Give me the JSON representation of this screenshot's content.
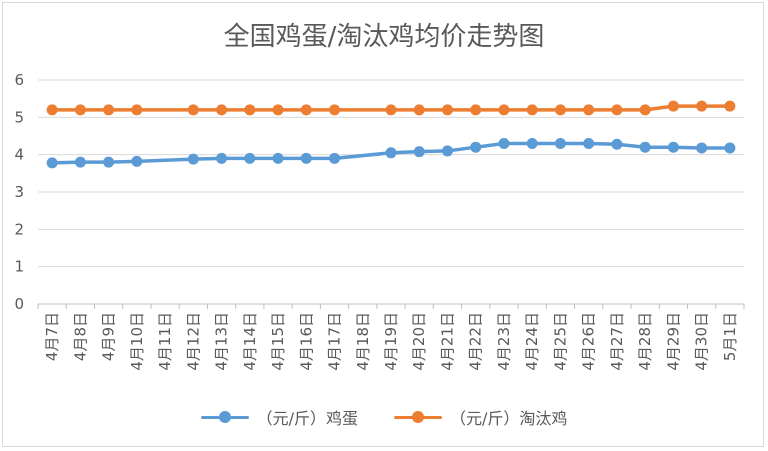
{
  "chart_data": {
    "type": "line",
    "title": "全国鸡蛋/淘汰鸡均价走势图",
    "xlabel": "",
    "ylabel": "",
    "ylim": [
      0,
      6
    ],
    "yticks": [
      "0",
      "1",
      "2",
      "3",
      "4",
      "5",
      "6"
    ],
    "categories": [
      "4月7日",
      "4月8日",
      "4月9日",
      "4月10日",
      "4月11日",
      "4月12日",
      "4月13日",
      "4月14日",
      "4月15日",
      "4月16日",
      "4月17日",
      "4月18日",
      "4月19日",
      "4月20日",
      "4月21日",
      "4月22日",
      "4月23日",
      "4月24日",
      "4月25日",
      "4月26日",
      "4月27日",
      "4月28日",
      "4月29日",
      "4月30日",
      "5月1日"
    ],
    "grid": true,
    "legend_position": "bottom",
    "series": [
      {
        "name": "（元/斤）鸡蛋",
        "color": "#5b9bd5",
        "values": [
          3.78,
          3.8,
          3.8,
          3.82,
          null,
          3.88,
          3.9,
          3.9,
          3.9,
          3.9,
          3.9,
          null,
          4.05,
          4.08,
          4.1,
          4.2,
          4.3,
          4.3,
          4.3,
          4.3,
          4.28,
          4.2,
          4.2,
          4.18,
          4.18
        ]
      },
      {
        "name": "（元/斤）淘汰鸡",
        "color": "#ed7d31",
        "values": [
          5.2,
          5.2,
          5.2,
          5.2,
          null,
          5.2,
          5.2,
          5.2,
          5.2,
          5.2,
          5.2,
          null,
          5.2,
          5.2,
          5.2,
          5.2,
          5.2,
          5.2,
          5.2,
          5.2,
          5.2,
          5.2,
          5.3,
          5.3,
          5.3
        ]
      }
    ]
  }
}
